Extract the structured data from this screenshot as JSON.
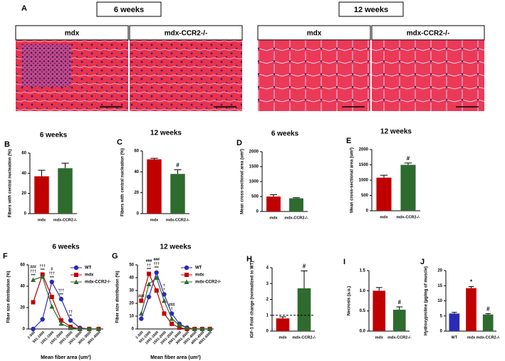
{
  "panel_a": {
    "label": "A",
    "groups": [
      {
        "title": "6 weeks",
        "images": [
          "mdx",
          "mdx-CCR2-/-"
        ]
      },
      {
        "title": "12 weeks",
        "images": [
          "mdx",
          "mdx-CCR2-/-"
        ]
      }
    ]
  },
  "chart_data": [
    {
      "type": "bar",
      "label": "B",
      "title": "6 weeks",
      "ylabel": "Fibers with central nucleation (%)",
      "categories": [
        "mdx",
        "mdx-CCR2-/-"
      ],
      "values": [
        37,
        45
      ],
      "errors": [
        6,
        5
      ],
      "colors": [
        "#c00000",
        "#2e6b2e"
      ],
      "ylim": [
        0,
        60
      ],
      "yticks": [
        0,
        20,
        40,
        60
      ]
    },
    {
      "type": "bar",
      "label": "C",
      "title": "12 weeks",
      "ylabel": "Fibers with central nucleation (%)",
      "categories": [
        "mdx",
        "mdx-CCR2-/-"
      ],
      "values": [
        52,
        38
      ],
      "errors": [
        1,
        4
      ],
      "colors": [
        "#c00000",
        "#2e6b2e"
      ],
      "annotations": [
        null,
        "#"
      ],
      "ylim": [
        0,
        60
      ],
      "yticks": [
        0,
        20,
        40,
        60
      ]
    },
    {
      "type": "bar",
      "label": "D",
      "title": "6 weeks",
      "ylabel": "Mean cross-sectional area (um²)",
      "categories": [
        "mdx",
        "mdx-CCR2-/-"
      ],
      "values": [
        500,
        440
      ],
      "errors": [
        60,
        20
      ],
      "colors": [
        "#c00000",
        "#2e6b2e"
      ],
      "ylim": [
        0,
        2000
      ],
      "yticks": [
        0,
        500,
        1000,
        1500,
        2000
      ]
    },
    {
      "type": "bar",
      "label": "E",
      "title": "12 weeks",
      "ylabel": "Mean cross-sectional area (um²)",
      "categories": [
        "mdx",
        "mdx-CCR2-/-"
      ],
      "values": [
        1080,
        1500
      ],
      "errors": [
        80,
        60
      ],
      "colors": [
        "#c00000",
        "#2e6b2e"
      ],
      "annotations": [
        null,
        "#"
      ],
      "ylim": [
        0,
        2000
      ],
      "yticks": [
        0,
        500,
        1000,
        1500,
        2000
      ]
    },
    {
      "type": "line",
      "label": "F",
      "title": "6 weeks",
      "ylabel": "Fiber size distribution (%)",
      "xlabel": "Mean fiber area (um²)",
      "categories": [
        "1-500",
        "501-1000",
        "1001-1500",
        "1501-2000",
        "2001-2500",
        "2501-3000",
        "3001-3500",
        "3501-4000"
      ],
      "series": [
        {
          "name": "WT",
          "color": "#2b2bb5",
          "marker": "circle",
          "values": [
            0,
            9,
            44,
            28,
            8,
            1,
            0,
            0
          ]
        },
        {
          "name": "mdx",
          "color": "#c00000",
          "marker": "square",
          "values": [
            25,
            51,
            30,
            8,
            2,
            0,
            0,
            0
          ]
        },
        {
          "name": "mdx-CCR2-/-",
          "color": "#2e6b2e",
          "marker": "triangle",
          "values": [
            46,
            49,
            21,
            5,
            1,
            0,
            0,
            0
          ]
        }
      ],
      "annotations": [
        {
          "category": "1-500",
          "lines": [
            "###",
            "†††",
            "***"
          ]
        },
        {
          "category": "501-1000",
          "lines": [
            "†††",
            "***"
          ]
        },
        {
          "category": "1001-1500",
          "lines": [
            "#",
            "†††",
            "***"
          ]
        },
        {
          "category": "1501-2000",
          "lines": [
            "†††",
            "***"
          ]
        },
        {
          "category": "2001-2500",
          "lines": [
            "††",
            "**"
          ]
        }
      ],
      "ylim": [
        0,
        60
      ],
      "yticks": [
        0,
        20,
        40,
        60
      ],
      "legend": "top-right"
    },
    {
      "type": "line",
      "label": "G",
      "title": "12 weeks",
      "ylabel": "Fiber size distribution (%)",
      "xlabel": "Mean fiber area (um²)",
      "categories": [
        "1-500",
        "501-1000",
        "1001-1500",
        "1501-2000",
        "2001-2500",
        "2501-3000",
        "3001-3500",
        "3501-4000",
        "4001-4500",
        "4501-5000"
      ],
      "series": [
        {
          "name": "WT",
          "color": "#2b2bb5",
          "marker": "circle",
          "values": [
            8,
            25,
            44,
            27,
            12,
            4,
            1,
            0,
            0,
            0
          ]
        },
        {
          "name": "mdx",
          "color": "#c00000",
          "marker": "square",
          "values": [
            22,
            43,
            30,
            12,
            4,
            1,
            0,
            0,
            0,
            0
          ]
        },
        {
          "name": "mdx-CCR2-/-",
          "color": "#2e6b2e",
          "marker": "triangle",
          "values": [
            12,
            35,
            40,
            22,
            8,
            3,
            1,
            0,
            0,
            0
          ]
        }
      ],
      "annotations": [
        {
          "category": "1-500",
          "lines": [
            "###"
          ]
        },
        {
          "category": "501-1000",
          "lines": [
            "###",
            "††",
            "***"
          ]
        },
        {
          "category": "1001-1500",
          "lines": [
            "###",
            "†††",
            "***"
          ]
        },
        {
          "category": "1501-2000",
          "lines": [
            "†",
            "*"
          ]
        },
        {
          "category": "2001-2500",
          "lines": [
            "###",
            "†"
          ]
        }
      ],
      "ylim": [
        0,
        50
      ],
      "yticks": [
        0,
        10,
        20,
        30,
        40,
        50
      ],
      "legend": "top-right"
    },
    {
      "type": "bar",
      "label": "H",
      "ylabel": "IGF-1 Fold change (normalized to WT)",
      "categories": [
        "mdx",
        "mdx-CCR2-/-"
      ],
      "values": [
        0.8,
        2.7
      ],
      "errors": [
        0.1,
        1.1
      ],
      "colors": [
        "#c00000",
        "#2e6b2e"
      ],
      "annotations": [
        null,
        "#"
      ],
      "ref_line": 1,
      "ylim": [
        0,
        4
      ],
      "yticks": [
        0,
        1,
        2,
        3,
        4
      ]
    },
    {
      "type": "bar",
      "label": "I",
      "ylabel": "Necrosis (a.u.)",
      "categories": [
        "mdx",
        "mdx-CCR2-/-"
      ],
      "values": [
        1.0,
        0.53
      ],
      "errors": [
        0.08,
        0.07
      ],
      "colors": [
        "#c00000",
        "#2e6b2e"
      ],
      "annotations": [
        null,
        "#"
      ],
      "ylim": [
        0,
        1.5
      ],
      "yticks": [
        {
          "value": 0,
          "label": "0.0"
        },
        0.5,
        {
          "value": 1,
          "label": "1.0"
        },
        1.5
      ]
    },
    {
      "type": "bar",
      "label": "J",
      "ylabel": "Hydroxyproline (µg/mg of muscle)",
      "categories": [
        "WT",
        "mdx",
        "mdx-CCR2-/-"
      ],
      "values": [
        5.8,
        14.2,
        5.5
      ],
      "errors": [
        0.4,
        0.5,
        0.3
      ],
      "colors": [
        "#2b2bb5",
        "#c00000",
        "#2e6b2e"
      ],
      "annotations": [
        null,
        "*",
        "#"
      ],
      "ylim": [
        0,
        20
      ],
      "yticks": [
        0,
        5,
        10,
        15,
        20
      ]
    }
  ]
}
